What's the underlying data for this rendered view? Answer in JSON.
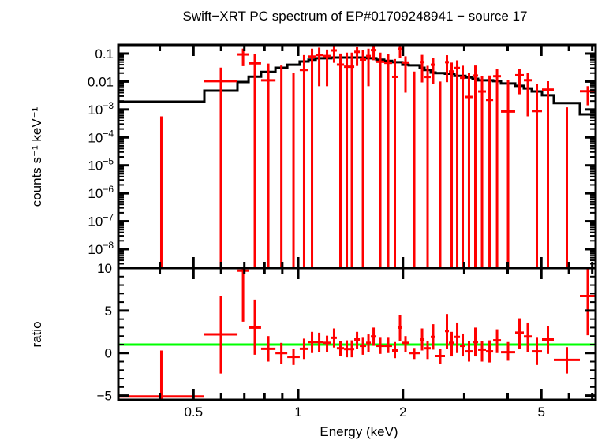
{
  "chart_data": {
    "type": "scatter",
    "title": "Swift−XRT PC spectrum of EP#01709248941 − source 17",
    "xlabel": "Energy (keV)",
    "xscale": "log",
    "xlim": [
      0.304,
      7.16
    ],
    "xticks": [
      {
        "value": 0.4,
        "label": ""
      },
      {
        "value": 0.5,
        "label": "0.5"
      },
      {
        "value": 0.6,
        "label": ""
      },
      {
        "value": 0.7,
        "label": ""
      },
      {
        "value": 0.8,
        "label": ""
      },
      {
        "value": 0.9,
        "label": ""
      },
      {
        "value": 1,
        "label": "1"
      },
      {
        "value": 2,
        "label": "2"
      },
      {
        "value": 3,
        "label": ""
      },
      {
        "value": 4,
        "label": ""
      },
      {
        "value": 5,
        "label": "5"
      },
      {
        "value": 6,
        "label": ""
      },
      {
        "value": 7,
        "label": ""
      }
    ],
    "panels": [
      {
        "name": "spectrum",
        "ylabel": "counts s⁻¹ keV⁻¹",
        "yscale": "log",
        "ylim": [
          2.1e-09,
          0.204
        ],
        "yticks": [
          {
            "value": 0.1,
            "base": "0.1",
            "exp": ""
          },
          {
            "value": 0.01,
            "base": "0.01",
            "exp": ""
          },
          {
            "value": 0.001,
            "base": "10",
            "exp": "−3"
          },
          {
            "value": 0.0001,
            "base": "10",
            "exp": "−4"
          },
          {
            "value": 1e-05,
            "base": "10",
            "exp": "−5"
          },
          {
            "value": 1e-06,
            "base": "10",
            "exp": "−6"
          },
          {
            "value": 1e-07,
            "base": "10",
            "exp": "−7"
          },
          {
            "value": 1e-08,
            "base": "10",
            "exp": "−8"
          }
        ]
      },
      {
        "name": "ratio",
        "ylabel": "ratio",
        "yscale": "linear",
        "ylim": [
          -5.5,
          10
        ],
        "yticks": [
          {
            "value": 10,
            "label": "10"
          },
          {
            "value": 5,
            "label": "5"
          },
          {
            "value": 0,
            "label": "0"
          },
          {
            "value": -5,
            "label": "−5"
          }
        ],
        "reference_line": 1
      }
    ],
    "colors": {
      "data": "#ff0000",
      "model": "#000000",
      "unity": "#00ff00",
      "axes": "#000000"
    },
    "note_counts_equal_ratio_times_model": true,
    "bins": [
      {
        "e_lo": 0.304,
        "e_hi": 0.537,
        "model": 0.0019,
        "ratio": -5.1,
        "ratio_lo": -10.5,
        "ratio_hi": 0.3
      },
      {
        "e_lo": 0.537,
        "e_hi": 0.669,
        "model": 0.0047,
        "ratio": 2.2,
        "ratio_lo": -2.4,
        "ratio_hi": 6.7
      },
      {
        "e_lo": 0.669,
        "e_hi": 0.72,
        "model": 0.0096,
        "ratio": 9.7,
        "ratio_lo": 3.7,
        "ratio_hi": 15.7
      },
      {
        "e_lo": 0.72,
        "e_hi": 0.782,
        "model": 0.015,
        "ratio": 3.0,
        "ratio_lo": -0.2,
        "ratio_hi": 6.3
      },
      {
        "e_lo": 0.782,
        "e_hi": 0.86,
        "model": 0.022,
        "ratio": 0.5,
        "ratio_lo": -1.0,
        "ratio_hi": 2.0
      },
      {
        "e_lo": 0.86,
        "e_hi": 0.93,
        "model": 0.031,
        "ratio": 0.0,
        "ratio_lo": -1.3,
        "ratio_hi": 1.2
      },
      {
        "e_lo": 0.93,
        "e_hi": 1.01,
        "model": 0.04,
        "ratio": -0.45,
        "ratio_lo": -1.4,
        "ratio_hi": 0.5
      },
      {
        "e_lo": 1.01,
        "e_hi": 1.07,
        "model": 0.052,
        "ratio": 0.5,
        "ratio_lo": -0.7,
        "ratio_hi": 1.7
      },
      {
        "e_lo": 1.07,
        "e_hi": 1.122,
        "model": 0.06,
        "ratio": 1.3,
        "ratio_lo": 0.0,
        "ratio_hi": 2.5
      },
      {
        "e_lo": 1.122,
        "e_hi": 1.176,
        "model": 0.068,
        "ratio": 1.3,
        "ratio_lo": 0.1,
        "ratio_hi": 2.4
      },
      {
        "e_lo": 1.176,
        "e_hi": 1.245,
        "model": 0.068,
        "ratio": 1.2,
        "ratio_lo": 0.1,
        "ratio_hi": 2.05
      },
      {
        "e_lo": 1.245,
        "e_hi": 1.291,
        "model": 0.072,
        "ratio": 1.8,
        "ratio_lo": 0.65,
        "ratio_hi": 2.9
      },
      {
        "e_lo": 1.291,
        "e_hi": 1.354,
        "model": 0.072,
        "ratio": 0.56,
        "ratio_lo": -0.35,
        "ratio_hi": 1.4
      },
      {
        "e_lo": 1.354,
        "e_hi": 1.404,
        "model": 0.072,
        "ratio": 0.47,
        "ratio_lo": -0.5,
        "ratio_hi": 1.5
      },
      {
        "e_lo": 1.404,
        "e_hi": 1.449,
        "model": 0.072,
        "ratio": 0.47,
        "ratio_lo": -0.5,
        "ratio_hi": 1.5
      },
      {
        "e_lo": 1.449,
        "e_hi": 1.503,
        "model": 0.072,
        "ratio": 1.6,
        "ratio_lo": 0.5,
        "ratio_hi": 2.5
      },
      {
        "e_lo": 1.503,
        "e_hi": 1.567,
        "model": 0.072,
        "ratio": 0.85,
        "ratio_lo": -0.2,
        "ratio_hi": 1.8
      },
      {
        "e_lo": 1.567,
        "e_hi": 1.617,
        "model": 0.068,
        "ratio": 1.2,
        "ratio_lo": 0.1,
        "ratio_hi": 2.2
      },
      {
        "e_lo": 1.617,
        "e_hi": 1.677,
        "model": 0.068,
        "ratio": 1.95,
        "ratio_lo": 0.85,
        "ratio_hi": 3.0
      },
      {
        "e_lo": 1.677,
        "e_hi": 1.767,
        "model": 0.06,
        "ratio": 0.85,
        "ratio_lo": -0.1,
        "ratio_hi": 1.8
      },
      {
        "e_lo": 1.767,
        "e_hi": 1.861,
        "model": 0.055,
        "ratio": 0.85,
        "ratio_lo": 0.0,
        "ratio_hi": 1.8
      },
      {
        "e_lo": 1.861,
        "e_hi": 1.931,
        "model": 0.049,
        "ratio": 0.3,
        "ratio_lo": -0.6,
        "ratio_hi": 1.3
      },
      {
        "e_lo": 1.931,
        "e_hi": 1.992,
        "model": 0.049,
        "ratio": 3.0,
        "ratio_lo": 1.4,
        "ratio_hi": 4.5
      },
      {
        "e_lo": 1.992,
        "e_hi": 2.077,
        "model": 0.04,
        "ratio": 1.2,
        "ratio_lo": 0.1,
        "ratio_hi": 2.0
      },
      {
        "e_lo": 2.077,
        "e_hi": 2.235,
        "model": 0.038,
        "ratio": 0.0,
        "ratio_lo": -0.7,
        "ratio_hi": 0.6
      },
      {
        "e_lo": 2.235,
        "e_hi": 2.306,
        "model": 0.031,
        "ratio": 1.6,
        "ratio_lo": 0.3,
        "ratio_hi": 2.9
      },
      {
        "e_lo": 2.306,
        "e_hi": 2.404,
        "model": 0.026,
        "ratio": 0.56,
        "ratio_lo": -0.7,
        "ratio_hi": 1.4
      },
      {
        "e_lo": 2.404,
        "e_hi": 2.48,
        "model": 0.021,
        "ratio": 1.9,
        "ratio_lo": 0.4,
        "ratio_hi": 3.4
      },
      {
        "e_lo": 2.48,
        "e_hi": 2.641,
        "model": 0.02,
        "ratio": -0.35,
        "ratio_lo": -1.3,
        "ratio_hi": 0.5
      },
      {
        "e_lo": 2.641,
        "e_hi": 2.711,
        "model": 0.019,
        "ratio": 2.6,
        "ratio_lo": 0.5,
        "ratio_hi": 4.6
      },
      {
        "e_lo": 2.711,
        "e_hi": 2.812,
        "model": 0.019,
        "ratio": 1.2,
        "ratio_lo": -0.4,
        "ratio_hi": 2.5
      },
      {
        "e_lo": 2.812,
        "e_hi": 2.917,
        "model": 0.016,
        "ratio": 1.9,
        "ratio_lo": 0.0,
        "ratio_hi": 3.6
      },
      {
        "e_lo": 2.917,
        "e_hi": 3.025,
        "model": 0.016,
        "ratio": 0.85,
        "ratio_lo": -0.4,
        "ratio_hi": 2.3
      },
      {
        "e_lo": 3.025,
        "e_hi": 3.17,
        "model": 0.014,
        "ratio": 0.2,
        "ratio_lo": -1.0,
        "ratio_hi": 1.4
      },
      {
        "e_lo": 3.17,
        "e_hi": 3.289,
        "model": 0.0125,
        "ratio": 1.3,
        "ratio_lo": -0.4,
        "ratio_hi": 3.0
      },
      {
        "e_lo": 3.289,
        "e_hi": 3.465,
        "model": 0.011,
        "ratio": 0.4,
        "ratio_lo": -1.0,
        "ratio_hi": 1.4
      },
      {
        "e_lo": 3.465,
        "e_hi": 3.633,
        "model": 0.011,
        "ratio": 0.2,
        "ratio_lo": -1.1,
        "ratio_hi": 1.5
      },
      {
        "e_lo": 3.633,
        "e_hi": 3.827,
        "model": 0.0103,
        "ratio": 1.5,
        "ratio_lo": 0.0,
        "ratio_hi": 2.8
      },
      {
        "e_lo": 3.827,
        "e_hi": 4.203,
        "model": 0.0085,
        "ratio": 0.1,
        "ratio_lo": -0.9,
        "ratio_hi": 1.3
      },
      {
        "e_lo": 4.203,
        "e_hi": 4.452,
        "model": 0.007,
        "ratio": 2.4,
        "ratio_lo": 0.5,
        "ratio_hi": 4.1
      },
      {
        "e_lo": 4.452,
        "e_hi": 4.691,
        "model": 0.0057,
        "ratio": 1.95,
        "ratio_lo": 0.1,
        "ratio_hi": 3.6
      },
      {
        "e_lo": 4.691,
        "e_hi": 5.02,
        "model": 0.0044,
        "ratio": 0.2,
        "ratio_lo": -1.4,
        "ratio_hi": 1.8
      },
      {
        "e_lo": 5.02,
        "e_hi": 5.429,
        "model": 0.0032,
        "ratio": 1.6,
        "ratio_lo": -0.1,
        "ratio_hi": 3.2
      },
      {
        "e_lo": 5.429,
        "e_hi": 6.45,
        "model": 0.0017,
        "ratio": -0.8,
        "ratio_lo": -2.4,
        "ratio_hi": 0.7
      },
      {
        "e_lo": 6.45,
        "e_hi": 7.16,
        "model": 0.00067,
        "ratio": 6.7,
        "ratio_lo": 2.1,
        "ratio_hi": 10.2
      }
    ]
  }
}
